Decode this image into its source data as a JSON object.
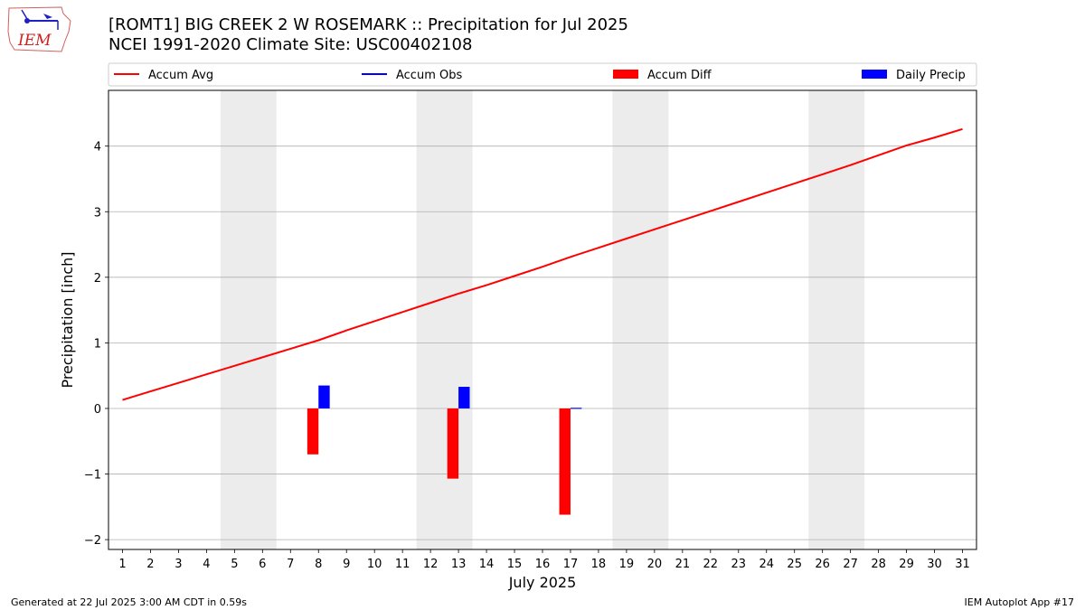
{
  "logo": {
    "text": "IEM",
    "icon": "iem-weather-logo-icon"
  },
  "title": "[ROMT1] BIG CREEK 2 W ROSEMARK :: Precipitation for Jul 2025",
  "subtitle": "NCEI 1991-2020 Climate Site: USC00402108",
  "footer": {
    "left": "Generated at 22 Jul 2025 3:00 AM CDT in 0.59s",
    "right": "IEM Autoplot App #17"
  },
  "colors": {
    "accum_avg": "#ff0000",
    "accum_obs": "#0000ff",
    "accum_diff": "#ff0000",
    "daily_precip": "#0000ff",
    "weekend_shade": "#ececec",
    "grid": "#b0b0b0"
  },
  "chart_data": {
    "type": "line",
    "xlabel": "July 2025",
    "ylabel": "Precipitation [inch]",
    "xlim": [
      0.5,
      31.5
    ],
    "ylim": [
      -2.15,
      4.85
    ],
    "yticks": [
      -2,
      -1,
      0,
      1,
      2,
      3,
      4
    ],
    "ytick_labels": [
      "−2",
      "−1",
      "0",
      "1",
      "2",
      "3",
      "4"
    ],
    "x": [
      1,
      2,
      3,
      4,
      5,
      6,
      7,
      8,
      9,
      10,
      11,
      12,
      13,
      14,
      15,
      16,
      17,
      18,
      19,
      20,
      21,
      22,
      23,
      24,
      25,
      26,
      27,
      28,
      29,
      30,
      31
    ],
    "grid": "horizontal",
    "legend_placement": "top, above plot",
    "weekend_shading": [
      [
        4.5,
        6.5
      ],
      [
        11.5,
        13.5
      ],
      [
        18.5,
        20.5
      ],
      [
        25.5,
        27.5
      ]
    ],
    "series": [
      {
        "name": "Accum Avg",
        "kind": "line",
        "x": [
          1,
          2,
          3,
          4,
          5,
          6,
          7,
          8,
          9,
          10,
          11,
          12,
          13,
          14,
          15,
          16,
          17,
          18,
          19,
          20,
          21,
          22,
          23,
          24,
          25,
          26,
          27,
          28,
          29,
          30,
          31
        ],
        "values": [
          0.13,
          0.26,
          0.39,
          0.52,
          0.65,
          0.78,
          0.91,
          1.04,
          1.19,
          1.33,
          1.47,
          1.61,
          1.75,
          1.88,
          2.02,
          2.16,
          2.31,
          2.45,
          2.59,
          2.73,
          2.87,
          3.01,
          3.15,
          3.29,
          3.43,
          3.57,
          3.71,
          3.86,
          4.01,
          4.13,
          4.26
        ]
      },
      {
        "name": "Accum Obs",
        "kind": "line",
        "x": [],
        "values": []
      },
      {
        "name": "Accum Diff",
        "kind": "bar",
        "x": [
          8,
          13,
          17
        ],
        "values": [
          -0.7,
          -1.07,
          -1.62
        ]
      },
      {
        "name": "Daily Precip",
        "kind": "bar",
        "x": [
          8,
          13,
          17
        ],
        "values": [
          0.35,
          0.33,
          0.01
        ]
      }
    ]
  }
}
